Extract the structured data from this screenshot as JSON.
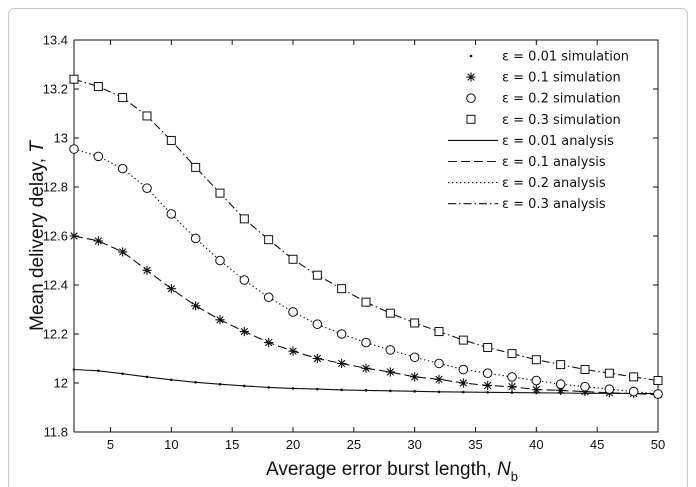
{
  "chart_data": {
    "type": "line",
    "xlabel": "Average error burst length, ",
    "xlabel_symbol": "N",
    "xlabel_sub": "b",
    "ylabel": "Mean delivery delay, ",
    "ylabel_symbol": "T",
    "xlim": [
      2,
      50
    ],
    "ylim": [
      11.8,
      13.4
    ],
    "x_ticks": [
      5,
      10,
      15,
      20,
      25,
      30,
      35,
      40,
      45,
      50
    ],
    "x_tick_labels": [
      "5",
      "10",
      "15",
      "20",
      "25",
      "30",
      "35",
      "40",
      "45",
      "50"
    ],
    "y_ticks": [
      11.8,
      12,
      12.2,
      12.4,
      12.6,
      12.8,
      13,
      13.2,
      13.4
    ],
    "y_tick_labels": [
      "11.8",
      "12",
      "12.2",
      "12.4",
      "12.6",
      "12.8",
      "13",
      "13.2",
      "13.4"
    ],
    "grid": false,
    "legend_position": "top-right",
    "x": [
      2,
      4,
      6,
      8,
      10,
      12,
      14,
      16,
      18,
      20,
      22,
      24,
      26,
      28,
      30,
      32,
      34,
      36,
      38,
      40,
      42,
      44,
      46,
      48,
      50
    ],
    "series": [
      {
        "name": "ε = 0.01 simulation",
        "kind": "markers",
        "marker": "dot",
        "values": [
          12.055,
          12.05,
          12.038,
          12.025,
          12.013,
          12.003,
          11.995,
          11.988,
          11.982,
          11.978,
          11.975,
          11.972,
          11.97,
          11.968,
          11.966,
          11.964,
          11.963,
          11.962,
          11.961,
          11.96,
          11.959,
          11.958,
          11.958,
          11.957,
          11.957
        ]
      },
      {
        "name": "ε = 0.1 simulation",
        "kind": "markers",
        "marker": "star",
        "values": [
          12.6,
          12.58,
          12.535,
          12.46,
          12.385,
          12.315,
          12.258,
          12.21,
          12.165,
          12.13,
          12.1,
          12.08,
          12.06,
          12.045,
          12.025,
          12.015,
          12.0,
          11.99,
          11.985,
          11.973,
          11.97,
          11.965,
          11.96,
          11.957,
          11.952
        ]
      },
      {
        "name": "ε = 0.2 simulation",
        "kind": "markers",
        "marker": "circle",
        "values": [
          12.955,
          12.925,
          12.875,
          12.795,
          12.69,
          12.59,
          12.5,
          12.42,
          12.35,
          12.29,
          12.24,
          12.2,
          12.165,
          12.135,
          12.105,
          12.08,
          12.055,
          12.04,
          12.025,
          12.01,
          11.995,
          11.985,
          11.975,
          11.965,
          11.955
        ]
      },
      {
        "name": "ε = 0.3 simulation",
        "kind": "markers",
        "marker": "square",
        "values": [
          13.24,
          13.21,
          13.165,
          13.09,
          12.99,
          12.88,
          12.775,
          12.67,
          12.585,
          12.505,
          12.44,
          12.385,
          12.33,
          12.285,
          12.245,
          12.21,
          12.175,
          12.145,
          12.12,
          12.095,
          12.075,
          12.055,
          12.04,
          12.025,
          12.01
        ]
      },
      {
        "name": "ε = 0.01 analysis",
        "kind": "line",
        "dash": "solid",
        "values": [
          12.055,
          12.05,
          12.038,
          12.025,
          12.013,
          12.003,
          11.995,
          11.988,
          11.982,
          11.978,
          11.975,
          11.972,
          11.97,
          11.968,
          11.966,
          11.964,
          11.963,
          11.962,
          11.961,
          11.96,
          11.959,
          11.958,
          11.958,
          11.957,
          11.957
        ]
      },
      {
        "name": "ε = 0.1 analysis",
        "kind": "line",
        "dash": "dashed",
        "values": [
          12.6,
          12.58,
          12.535,
          12.46,
          12.385,
          12.315,
          12.258,
          12.21,
          12.165,
          12.13,
          12.1,
          12.08,
          12.06,
          12.045,
          12.025,
          12.015,
          12.0,
          11.99,
          11.985,
          11.973,
          11.97,
          11.965,
          11.96,
          11.957,
          11.952
        ]
      },
      {
        "name": "ε = 0.2 analysis",
        "kind": "line",
        "dash": "dotted",
        "values": [
          12.955,
          12.925,
          12.875,
          12.795,
          12.69,
          12.59,
          12.5,
          12.42,
          12.35,
          12.29,
          12.24,
          12.2,
          12.165,
          12.135,
          12.105,
          12.08,
          12.055,
          12.04,
          12.025,
          12.01,
          11.995,
          11.985,
          11.975,
          11.965,
          11.955
        ]
      },
      {
        "name": "ε = 0.3 analysis",
        "kind": "line",
        "dash": "dashdot",
        "values": [
          13.24,
          13.21,
          13.165,
          13.09,
          12.99,
          12.88,
          12.775,
          12.67,
          12.585,
          12.505,
          12.44,
          12.385,
          12.33,
          12.285,
          12.245,
          12.21,
          12.175,
          12.145,
          12.12,
          12.095,
          12.075,
          12.055,
          12.04,
          12.025,
          12.01
        ]
      }
    ],
    "legend": [
      {
        "text": "ε = 0.01 simulation",
        "marker": "dot",
        "line": null
      },
      {
        "text": "ε = 0.1 simulation",
        "marker": "star",
        "line": null
      },
      {
        "text": "ε = 0.2 simulation",
        "marker": "circle",
        "line": null
      },
      {
        "text": "ε = 0.3 simulation",
        "marker": "square",
        "line": null
      },
      {
        "text": "ε = 0.01 analysis",
        "marker": null,
        "line": "solid"
      },
      {
        "text": "ε = 0.1 analysis",
        "marker": null,
        "line": "dashed"
      },
      {
        "text": "ε = 0.2 analysis",
        "marker": null,
        "line": "dotted"
      },
      {
        "text": "ε = 0.3 analysis",
        "marker": null,
        "line": "dashdot"
      }
    ],
    "colors": {
      "line": "#111111",
      "axis": "#111111",
      "background": "#ffffff"
    }
  }
}
